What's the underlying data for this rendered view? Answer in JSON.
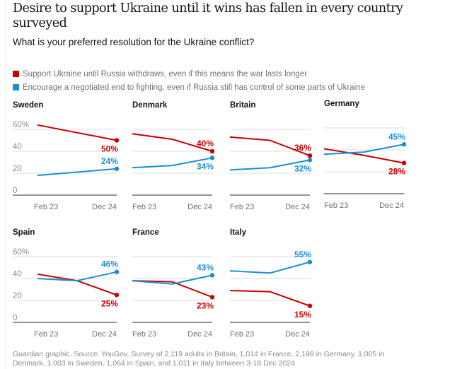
{
  "title": "Desire to support Ukraine until it wins has fallen in every country surveyed",
  "subtitle": "What is your preferred resolution for the Ukraine conflict?",
  "legend": [
    {
      "label": "Support Ukraine until Russia withdraws, even if this means the war lasts longer",
      "color": "#c70000"
    },
    {
      "label": "Encourage a negotiated end to fighting, even if Russia still has control of some parts of Ukraine",
      "color": "#1a8fd6"
    }
  ],
  "source": "Guardian graphic. Source: YouGov. Survey of 2,119 adults in Britain, 1,014 in France, 2,198 in Germany, 1,005 in Denmark, 1,003 in Sweden, 1,064 in Spain, and 1,011 in Italy between 3-18 Dec 2024",
  "chart_data": {
    "type": "line",
    "layout": "small-multiples",
    "title": "Desire to support Ukraine until it wins has fallen in every country surveyed",
    "subtitle": "What is your preferred resolution for the Ukraine conflict?",
    "x_tick_labels": [
      "Feb 23",
      "Dec 24"
    ],
    "y_tick_labels": [
      "60%",
      "40",
      "20",
      "0"
    ],
    "y_ticks": [
      60,
      40,
      20,
      0
    ],
    "ylim": [
      0,
      60
    ],
    "grid": true,
    "series_names": [
      "Support Ukraine until Russia withdraws, even if this means the war lasts longer",
      "Encourage a negotiated end to fighting, even if Russia still has control of some parts of Ukraine"
    ],
    "panels": [
      {
        "country": "Sweden",
        "show_y_axis": true,
        "x": [
          0,
          1
        ],
        "support": [
          64,
          50
        ],
        "negotiate": [
          18,
          24
        ],
        "support_label": "50%",
        "negotiate_label": "24%",
        "support_label_pos": "below",
        "negotiate_label_pos": "above"
      },
      {
        "country": "Denmark",
        "show_y_axis": false,
        "x": [
          0,
          0.5,
          1
        ],
        "support": [
          56,
          51,
          40
        ],
        "negotiate": [
          25,
          27,
          34
        ],
        "support_label": "40%",
        "negotiate_label": "34%",
        "support_label_pos": "above",
        "negotiate_label_pos": "below"
      },
      {
        "country": "Britain",
        "show_y_axis": false,
        "x": [
          0,
          0.5,
          1
        ],
        "support": [
          53,
          50,
          36
        ],
        "negotiate": [
          23,
          25,
          32
        ],
        "support_label": "36%",
        "negotiate_label": "32%",
        "support_label_pos": "above",
        "negotiate_label_pos": "below"
      },
      {
        "country": "Germany",
        "show_y_axis": false,
        "x": [
          0,
          0.5,
          1
        ],
        "support": [
          41,
          35,
          28
        ],
        "negotiate": [
          36,
          38,
          45
        ],
        "support_label": "28%",
        "negotiate_label": "45%",
        "support_label_pos": "below",
        "negotiate_label_pos": "above"
      },
      {
        "country": "Spain",
        "show_y_axis": true,
        "x": [
          0,
          0.5,
          1
        ],
        "support": [
          44,
          38,
          25
        ],
        "negotiate": [
          40,
          38,
          46
        ],
        "support_label": "25%",
        "negotiate_label": "46%",
        "support_label_pos": "below",
        "negotiate_label_pos": "above"
      },
      {
        "country": "France",
        "show_y_axis": false,
        "x": [
          0,
          0.5,
          1
        ],
        "support": [
          38,
          37,
          23
        ],
        "negotiate": [
          38,
          35,
          43
        ],
        "support_label": "23%",
        "negotiate_label": "43%",
        "support_label_pos": "below",
        "negotiate_label_pos": "above"
      },
      {
        "country": "Italy",
        "show_y_axis": false,
        "x": [
          0,
          0.5,
          1
        ],
        "support": [
          29,
          28,
          15
        ],
        "negotiate": [
          47,
          45,
          55
        ],
        "support_label": "15%",
        "negotiate_label": "55%",
        "support_label_pos": "below",
        "negotiate_label_pos": "above"
      }
    ]
  },
  "colors": {
    "support": "#c70000",
    "negotiate": "#1a8fd6",
    "grid": "#dcdcdc",
    "axis": "#707070",
    "tick": "#707070"
  }
}
